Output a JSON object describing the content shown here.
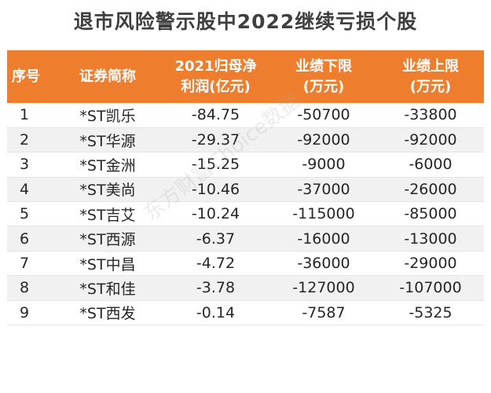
{
  "title": "退市风险警示股中2022继续亏损个股",
  "headers": [
    {
      "l1": "序号",
      "l2": ""
    },
    {
      "l1": "证券简称",
      "l2": ""
    },
    {
      "l1": "2021归母净",
      "l2": "利润(亿元)"
    },
    {
      "l1": "业绩下限",
      "l2": "(万元)"
    },
    {
      "l1": "业绩上限",
      "l2": "(万元)"
    }
  ],
  "rows": [
    [
      "1",
      "*ST凯乐",
      "-84.75",
      "-50700",
      "-33800"
    ],
    [
      "2",
      "*ST华源",
      "-29.37",
      "-92000",
      "-92000"
    ],
    [
      "3",
      "*ST金洲",
      "-15.25",
      "-9000",
      "-6000"
    ],
    [
      "4",
      "*ST美尚",
      "-10.46",
      "-37000",
      "-26000"
    ],
    [
      "5",
      "*ST吉艾",
      "-10.24",
      "-115000",
      "-85000"
    ],
    [
      "6",
      "*ST西源",
      "-6.37",
      "-16000",
      "-13000"
    ],
    [
      "7",
      "*ST中昌",
      "-4.72",
      "-36000",
      "-29000"
    ],
    [
      "8",
      "*ST和佳",
      "-3.78",
      "-127000",
      "-107000"
    ],
    [
      "9",
      "*ST西发",
      "-0.14",
      "-7587",
      "-5325"
    ]
  ],
  "watermark": "东方财富Choice数据"
}
